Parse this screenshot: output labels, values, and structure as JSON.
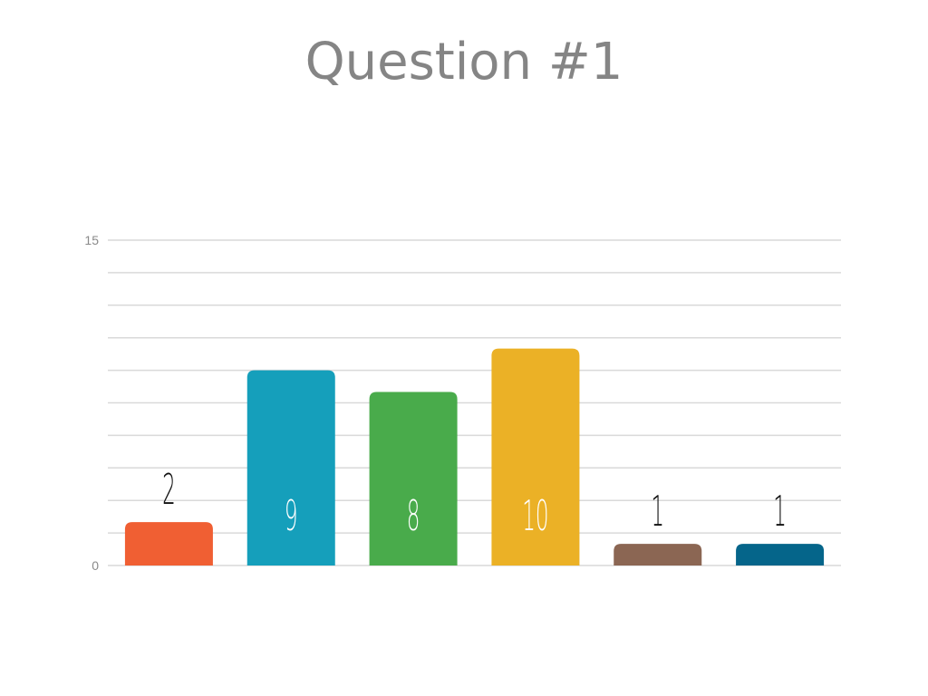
{
  "chart_data": {
    "type": "bar",
    "title": "Question #1",
    "categories": [
      "",
      "",
      "",
      "",
      "",
      ""
    ],
    "values": [
      2,
      9,
      8,
      10,
      1,
      1
    ],
    "colors": [
      "#f05f33",
      "#159fbb",
      "#49ab4b",
      "#ebb126",
      "#8b6653",
      "#05658a"
    ],
    "ylim": [
      0,
      15
    ],
    "yticks": [
      0,
      15
    ],
    "grid_step": 1.5,
    "grid": true,
    "xlabel": "",
    "ylabel": "",
    "legend": "none"
  }
}
